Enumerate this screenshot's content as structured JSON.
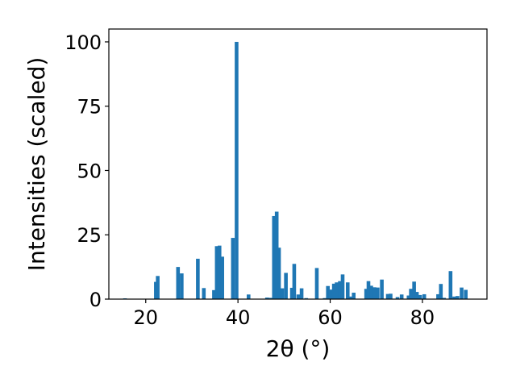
{
  "chart_data": {
    "type": "bar",
    "xlabel": "2θ (°)",
    "ylabel": "Intensities (scaled)",
    "xlim": [
      12,
      94
    ],
    "ylim": [
      0,
      105
    ],
    "grid": false,
    "bar_color": "#1f77b4",
    "xticks": [
      20,
      40,
      60,
      80
    ],
    "yticks": [
      0,
      25,
      50,
      75,
      100
    ],
    "x": [
      15.5,
      22.2,
      22.6,
      27.0,
      27.8,
      31.3,
      32.6,
      34.8,
      35.4,
      36.0,
      36.6,
      38.9,
      39.7,
      42.3,
      46.3,
      47.0,
      47.8,
      48.4,
      48.9,
      49.6,
      50.4,
      51.7,
      52.2,
      53.1,
      53.8,
      54.8,
      57.1,
      58.8,
      59.5,
      60.3,
      60.8,
      61.4,
      62.1,
      62.7,
      63.8,
      64.4,
      65.1,
      67.8,
      68.3,
      68.9,
      69.6,
      70.3,
      71.2,
      72.5,
      73.1,
      74.6,
      75.5,
      77.0,
      77.5,
      78.2,
      78.8,
      79.5,
      80.4,
      83.4,
      84.0,
      84.7,
      86.1,
      86.9,
      87.6,
      88.5,
      89.4
    ],
    "values": [
      0.3,
      6.7,
      9.0,
      12.5,
      10.0,
      15.7,
      4.3,
      3.5,
      20.6,
      20.8,
      16.5,
      23.8,
      100.0,
      1.8,
      0.6,
      0.5,
      32.3,
      34.0,
      20.0,
      4.2,
      10.2,
      4.4,
      13.7,
      1.8,
      4.2,
      0.4,
      12.1,
      0.4,
      5.1,
      3.7,
      6.0,
      6.5,
      7.0,
      9.6,
      6.5,
      1.0,
      2.5,
      4.0,
      7.0,
      5.2,
      4.6,
      4.5,
      7.6,
      2.0,
      2.1,
      0.8,
      1.8,
      1.4,
      4.0,
      6.8,
      2.8,
      1.6,
      1.9,
      1.9,
      5.9,
      0.5,
      10.9,
      1.0,
      1.2,
      4.5,
      3.6
    ]
  }
}
